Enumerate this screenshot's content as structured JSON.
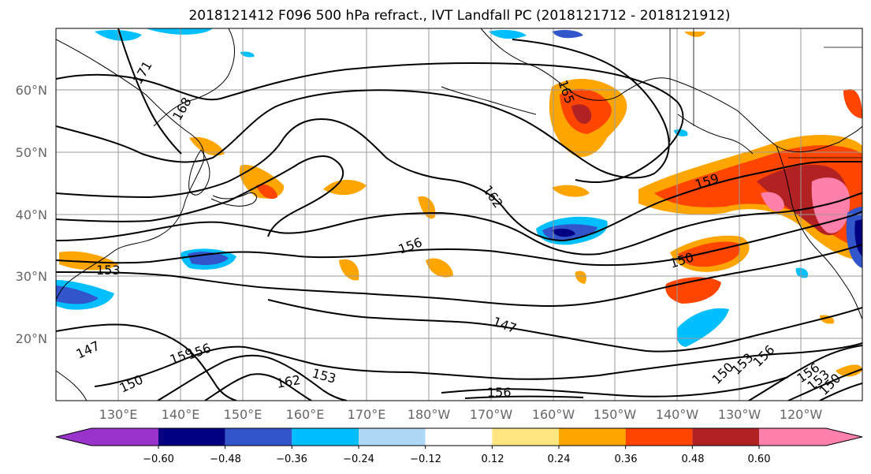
{
  "title": "2018121412 F096 500 hPa refract., IVT Landfall PC (2018121712 - 2018121912)",
  "map": {
    "lat_labels": [
      "60°N",
      "50°N",
      "40°N",
      "30°N",
      "20°N"
    ],
    "lon_labels": [
      "130°E",
      "140°E",
      "150°E",
      "160°E",
      "170°E",
      "180°W",
      "170°W",
      "160°W",
      "150°W",
      "140°W",
      "130°W",
      "120°W"
    ],
    "contour_labels": [
      "171",
      "168",
      "165",
      "162",
      "159",
      "156",
      "153",
      "150",
      "147",
      "159",
      "156",
      "153",
      "150",
      "147",
      "150",
      "153",
      "156",
      "150",
      "153",
      "156",
      "156",
      "162"
    ]
  },
  "colorbar": {
    "tick_labels": [
      "−0.60",
      "−0.48",
      "−0.36",
      "−0.24",
      "−0.12",
      "0.12",
      "0.24",
      "0.36",
      "0.48",
      "0.60"
    ],
    "colors": [
      "#9933cc",
      "#000080",
      "#3355cc",
      "#00bfff",
      "#add8f6",
      "#ffffff",
      "#ffe680",
      "#ffa500",
      "#ff4500",
      "#b22222",
      "#ff80aa"
    ],
    "extend": "both"
  }
}
